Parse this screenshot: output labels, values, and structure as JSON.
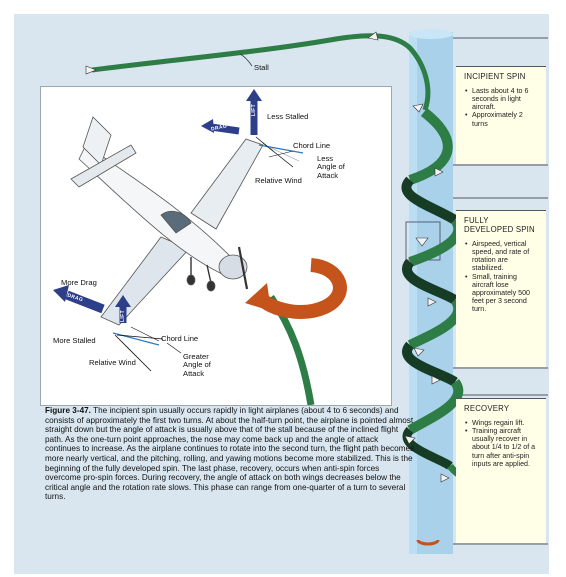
{
  "labels": {
    "stall": "Stall",
    "less_stalled": "Less Stalled",
    "chord_line_top": "Chord Line",
    "less_aoa": "Less\nAngle of\nAttack",
    "relative_wind_top": "Relative Wind",
    "more_drag": "More Drag",
    "more_stalled": "More Stalled",
    "chord_line_bottom": "Chord Line",
    "relative_wind_bottom": "Relative Wind",
    "greater_aoa": "Greater\nAngle of\nAttack",
    "drag_tag": "DRAG",
    "lift_tag": "LIFT"
  },
  "phases": [
    {
      "title": "INCIPIENT SPIN",
      "bullets": [
        "Lasts about 4 to 6 seconds in light aircraft.",
        "Approximately 2 turns"
      ]
    },
    {
      "title": "FULLY DEVELOPED SPIN",
      "bullets": [
        "Airspeed, vertical speed, and rate of rotation are stabilized.",
        "Small, training aircraft lose approximately 500 feet per 3 second turn."
      ]
    },
    {
      "title": "RECOVERY",
      "bullets": [
        "Wings regain lift.",
        "Training aircraft usually recover in about 1/4 to 1/2 of a turn after anti-spin inputs are applied."
      ]
    }
  ],
  "caption": {
    "label": "Figure 3-47.",
    "text": "The incipient spin usually occurs rapidly in light airplanes (about 4 to 6 seconds) and consists of approximately the first two turns. At about the half-turn point, the airplane is pointed almost straight down but the angle of attack is usually above that of the stall because of the inclined flight path. As the one-turn point approaches, the nose may come back up and the angle of attack continues to increase. As the airplane continues to rotate into the second turn, the flight path becomes more nearly vertical, and the pitching, rolling, and yawing motions become more stabilized. This is the beginning of the fully developed spin. The last phase, recovery, occurs when anti-spin forces overcome pro-spin forces. During recovery, the angle of attack on both wings decreases below the critical angle and the rotation rate slows. This phase can range from one-quarter of a turn to several turns."
  },
  "colors": {
    "background": "#d9e6ef",
    "column": "#a9d2ea",
    "ribbon": "#2e7d46",
    "ribbon_dark": "#173c25",
    "panel": "#ffffe8",
    "drag_arrow": "#2e3f8a",
    "rotation_arrow": "#c4541b"
  }
}
